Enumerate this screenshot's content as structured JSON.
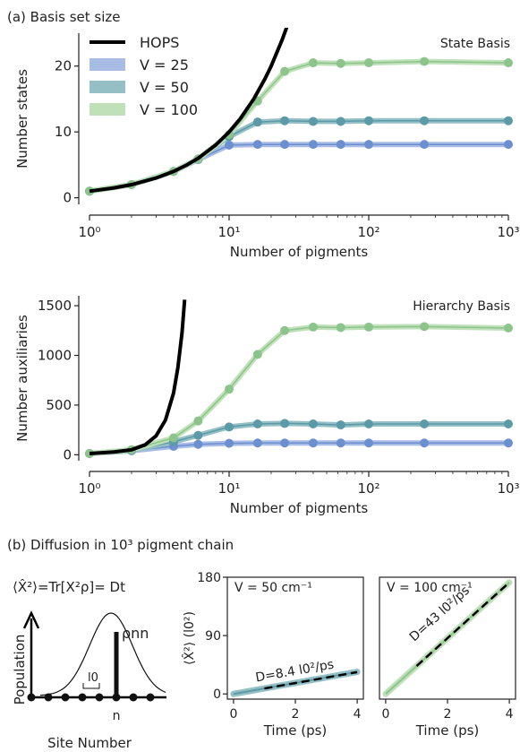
{
  "colors": {
    "hops": "#000000",
    "v25": "#6b8fcf",
    "v25_band": "#a9bce6",
    "v50": "#5b9aa6",
    "v50_band": "#94bfc5",
    "v100": "#8cc48c",
    "v100_band": "#bfe0b8",
    "dashed": "#000000"
  },
  "panel_a": {
    "label": "(a) Basis set size"
  },
  "panel_b": {
    "label": "(b) Diffusion in 10³ pigment chain",
    "schematic": {
      "formula": "⟨X̂²⟩=Tr[X²ρ]= Dt",
      "ylabel": "Population",
      "xlabel": "Site Number",
      "rho_label": "ρnn",
      "l0_label": "l0",
      "n_label": "n"
    }
  },
  "chart_data": [
    {
      "type": "line",
      "id": "state-basis",
      "annotation": "State Basis",
      "xlabel": "Number of pigments",
      "ylabel": "Number states",
      "xscale": "log",
      "xlim": [
        1,
        1000
      ],
      "ylim": [
        -1,
        25
      ],
      "yticks": [
        0,
        10,
        20
      ],
      "xticks": [
        1,
        10,
        100,
        1000
      ],
      "xtick_labels": [
        "10⁰",
        "10¹",
        "10²",
        "10³"
      ],
      "legend": {
        "placement": "top-left",
        "entries": [
          "HOPS",
          "V = 25",
          "V = 50",
          "V = 100"
        ]
      },
      "hops_curve": {
        "name": "HOPS",
        "x": [
          1,
          1.5,
          2,
          3,
          4,
          5,
          6,
          8,
          10,
          12,
          15,
          18,
          20,
          24,
          27
        ],
        "y": [
          1,
          1.5,
          2,
          3,
          4,
          5,
          6,
          8,
          10,
          12,
          15,
          18,
          20,
          24,
          27
        ]
      },
      "series": [
        {
          "name": "V = 25",
          "x": [
            1,
            2,
            4,
            6,
            10,
            16,
            25,
            40,
            63,
            100,
            250,
            1000
          ],
          "y": [
            1,
            2,
            4,
            5.8,
            8,
            8.1,
            8.1,
            8.1,
            8.1,
            8.1,
            8.1,
            8.1
          ]
        },
        {
          "name": "V = 50",
          "x": [
            1,
            2,
            4,
            6,
            10,
            16,
            25,
            40,
            63,
            100,
            250,
            1000
          ],
          "y": [
            1,
            2,
            4,
            5.9,
            9.3,
            11.5,
            11.7,
            11.6,
            11.6,
            11.7,
            11.7,
            11.7
          ]
        },
        {
          "name": "V = 100",
          "x": [
            1,
            2,
            4,
            6,
            10,
            16,
            25,
            40,
            63,
            100,
            250,
            1000
          ],
          "y": [
            1,
            2,
            4,
            5.9,
            9.6,
            14.7,
            19.2,
            20.5,
            20.4,
            20.5,
            20.7,
            20.5
          ]
        }
      ]
    },
    {
      "type": "line",
      "id": "hierarchy-basis",
      "annotation": "Hierarchy Basis",
      "xlabel": "Number of pigments",
      "ylabel": "Number auxiliaries",
      "xscale": "log",
      "xlim": [
        1,
        1000
      ],
      "ylim": [
        -60,
        1600
      ],
      "yticks": [
        0,
        500,
        1000,
        1500
      ],
      "xticks": [
        1,
        10,
        100,
        1000
      ],
      "xtick_labels": [
        "10⁰",
        "10¹",
        "10²",
        "10³"
      ],
      "hops_curve": {
        "name": "HOPS",
        "x": [
          1,
          1.5,
          2,
          2.5,
          3,
          3.5,
          4,
          4.3,
          4.6,
          4.8
        ],
        "y": [
          12,
          28,
          50,
          100,
          190,
          350,
          620,
          880,
          1230,
          1560
        ]
      },
      "series": [
        {
          "name": "V = 25",
          "x": [
            1,
            2,
            4,
            6,
            10,
            16,
            25,
            40,
            63,
            100,
            250,
            1000
          ],
          "y": [
            12,
            40,
            85,
            105,
            115,
            118,
            118,
            118,
            118,
            118,
            118,
            118
          ]
        },
        {
          "name": "V = 50",
          "x": [
            1,
            2,
            4,
            6,
            10,
            16,
            25,
            40,
            63,
            100,
            250,
            1000
          ],
          "y": [
            12,
            45,
            130,
            195,
            280,
            310,
            315,
            310,
            300,
            310,
            310,
            310
          ]
        },
        {
          "name": "V = 100",
          "x": [
            1,
            2,
            4,
            6,
            10,
            16,
            25,
            40,
            63,
            100,
            250,
            1000
          ],
          "y": [
            12,
            50,
            170,
            340,
            660,
            1010,
            1250,
            1285,
            1280,
            1285,
            1290,
            1275
          ]
        }
      ]
    },
    {
      "type": "line",
      "id": "msd-v50",
      "title": "V = 50 cm⁻¹",
      "xlabel": "Time (ps)",
      "ylabel": "⟨X̂²⟩ (l0²)",
      "xlim": [
        -0.2,
        4.2
      ],
      "ylim": [
        -8,
        180
      ],
      "xticks": [
        0,
        2,
        4
      ],
      "yticks": [
        0,
        90,
        180
      ],
      "series": [
        {
          "name": "V = 50",
          "x": [
            0,
            4
          ],
          "y": [
            0,
            34
          ]
        }
      ],
      "fit": {
        "label": "D=8.4 l0²/ps",
        "x": [
          1,
          4
        ],
        "y": [
          8.4,
          33.6
        ]
      }
    },
    {
      "type": "line",
      "id": "msd-v100",
      "title": "V = 100 cm⁻¹",
      "xlabel": "Time (ps)",
      "xlim": [
        -0.2,
        4.2
      ],
      "ylim": [
        -8,
        180
      ],
      "xticks": [
        0,
        2,
        4
      ],
      "series": [
        {
          "name": "V = 100",
          "x": [
            0,
            4
          ],
          "y": [
            0,
            172
          ]
        }
      ],
      "fit": {
        "label": "D=43 l0²/ps",
        "x": [
          1,
          4
        ],
        "y": [
          43,
          172
        ]
      }
    }
  ]
}
